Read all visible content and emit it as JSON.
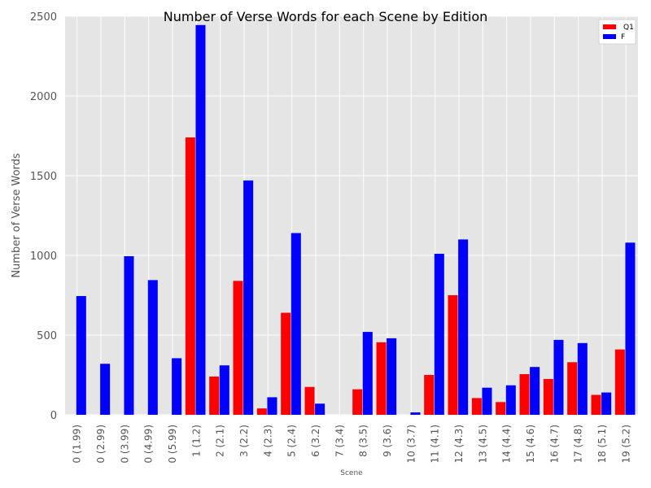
{
  "chart_data": {
    "type": "bar",
    "title": "Number of Verse Words  for each Scene by Edition",
    "xlabel": "Scene",
    "ylabel": "Number of Verse Words",
    "ylim": [
      0,
      2500
    ],
    "yticks": [
      0,
      500,
      1000,
      1500,
      2000,
      2500
    ],
    "grid": true,
    "legend_position": "top-right",
    "categories": [
      "0 (1.99)",
      "0 (2.99)",
      "0 (3.99)",
      "0 (4.99)",
      "0 (5.99)",
      "1 (1.2)",
      "2 (2.1)",
      "3 (2.2)",
      "4 (2.3)",
      "5 (2.4)",
      "6 (3.2)",
      "7 (3.4)",
      "8 (3.5)",
      "9 (3.6)",
      "10 (3.7)",
      "11 (4.1)",
      "12 (4.3)",
      "13 (4.5)",
      "14 (4.4)",
      "15 (4.6)",
      "16 (4.7)",
      "17 (4.8)",
      "18 (5.1)",
      "19 (5.2)"
    ],
    "series": [
      {
        "name": "Q1",
        "color": "#ff0000",
        "values": [
          0,
          0,
          0,
          0,
          0,
          1740,
          240,
          840,
          40,
          640,
          175,
          0,
          160,
          455,
          0,
          250,
          750,
          105,
          80,
          255,
          225,
          330,
          125,
          410
        ]
      },
      {
        "name": "F",
        "color": "#0000ff",
        "values": [
          745,
          320,
          995,
          845,
          355,
          2445,
          310,
          1470,
          110,
          1140,
          70,
          0,
          520,
          480,
          15,
          1010,
          1100,
          170,
          185,
          300,
          470,
          450,
          140,
          1080
        ]
      }
    ]
  },
  "style": {
    "plot_background": "#e5e5e5",
    "grid_color": "#ffffff"
  }
}
